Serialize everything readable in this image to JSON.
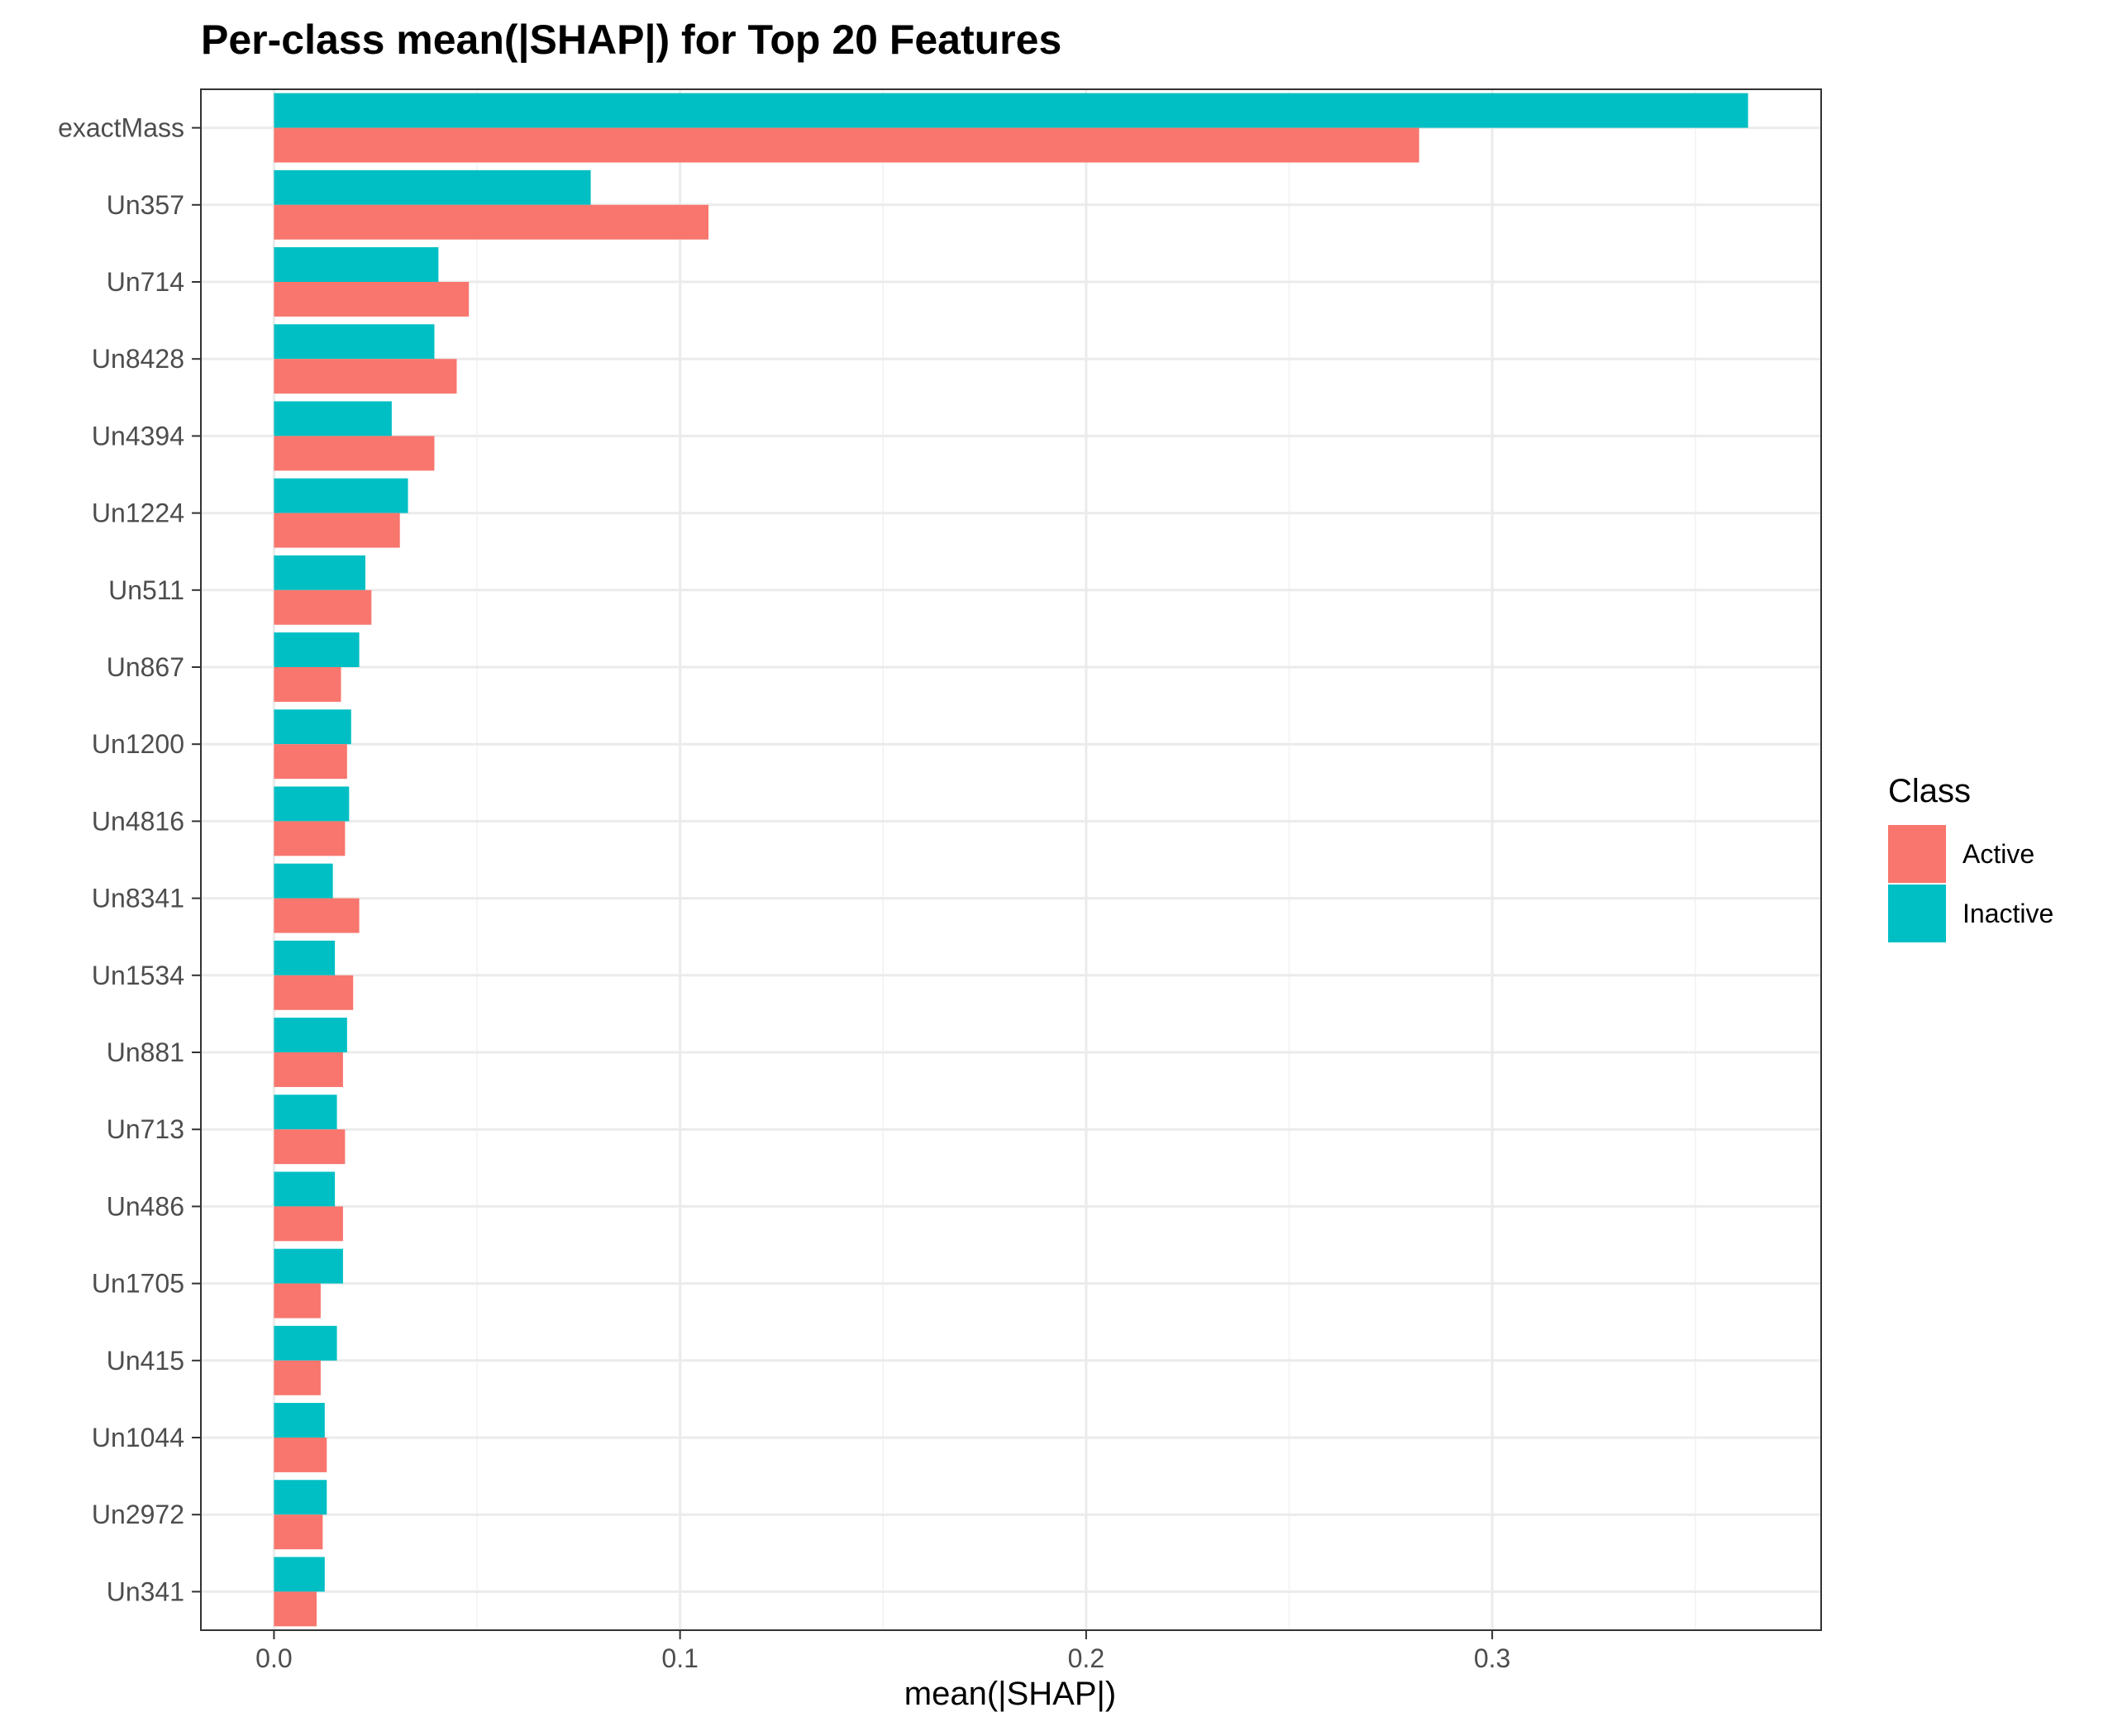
{
  "chart_data": {
    "type": "bar",
    "orientation": "horizontal",
    "title": "Per-class mean(|SHAP|) for Top 20 Features",
    "xlabel": "mean(|SHAP|)",
    "ylabel": "",
    "xlim": [
      -0.018,
      0.381
    ],
    "xticks": [
      0.0,
      0.1,
      0.2,
      0.3
    ],
    "xtick_labels": [
      "0.0",
      "0.1",
      "0.2",
      "0.3"
    ],
    "grid": true,
    "legend": {
      "title": "Class",
      "placement": "right"
    },
    "categories": [
      "exactMass",
      "Un357",
      "Un714",
      "Un8428",
      "Un4394",
      "Un1224",
      "Un511",
      "Un867",
      "Un1200",
      "Un4816",
      "Un8341",
      "Un1534",
      "Un881",
      "Un713",
      "Un486",
      "Un1705",
      "Un415",
      "Un1044",
      "Un2972",
      "Un341"
    ],
    "series": [
      {
        "name": "Active",
        "color": "#F8766D",
        "values": [
          0.282,
          0.107,
          0.048,
          0.045,
          0.0395,
          0.031,
          0.024,
          0.0165,
          0.018,
          0.0175,
          0.021,
          0.0195,
          0.017,
          0.0175,
          0.017,
          0.0115,
          0.0115,
          0.013,
          0.012,
          0.0105
        ]
      },
      {
        "name": "Inactive",
        "color": "#00BFC4",
        "values": [
          0.363,
          0.078,
          0.0405,
          0.0395,
          0.029,
          0.033,
          0.0225,
          0.021,
          0.019,
          0.0185,
          0.0145,
          0.015,
          0.018,
          0.0155,
          0.015,
          0.017,
          0.0155,
          0.0125,
          0.013,
          0.0125
        ]
      }
    ]
  }
}
